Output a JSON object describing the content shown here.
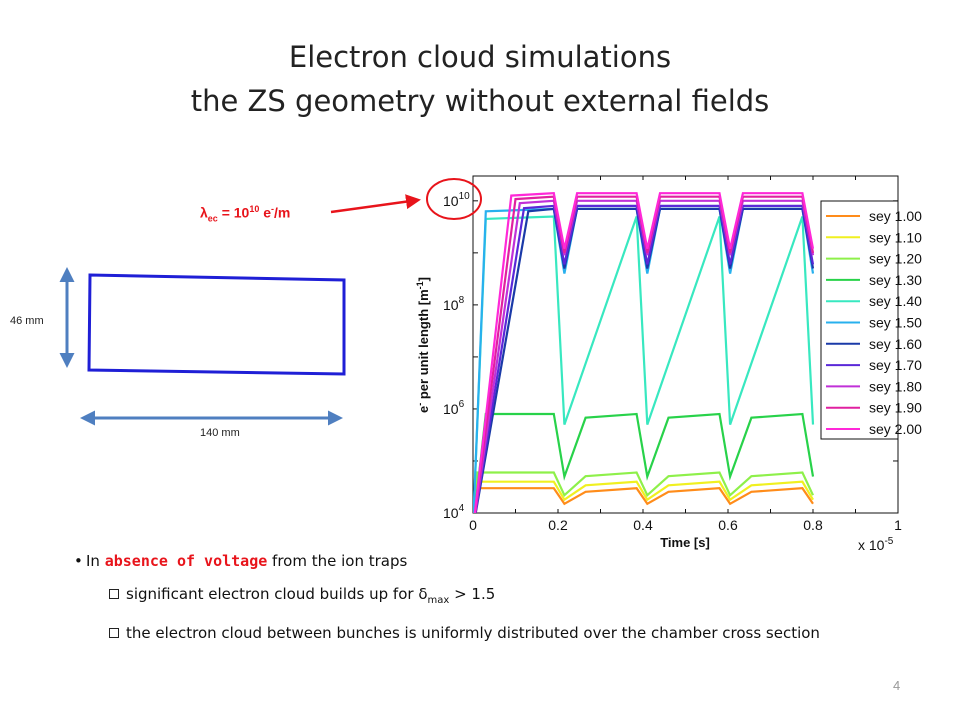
{
  "slide": {
    "title_line1": "Electron cloud simulations",
    "title_line2": "the ZS geometry without external fields",
    "page_number": "4"
  },
  "annotation": {
    "symbol": "λ",
    "subscript": "ec",
    "equals": " = 10",
    "exponent": "10",
    "unit": " e",
    "unit_sup": "-",
    "per": "/m",
    "color": "#e8141b"
  },
  "geometry": {
    "height_label": "46 mm",
    "width_label": "140 mm",
    "box_color": "#1f1fd6",
    "arrow_color": "#4f7fc0"
  },
  "bullets": {
    "main_pre": "In ",
    "main_highlight": "absence of voltage",
    "main_post": " from the ion traps",
    "sub1_pre": "significant electron cloud builds up for ",
    "sub1_symbol": "δ",
    "sub1_subscript": "max",
    "sub1_post": " > 1.5",
    "sub2": "the electron cloud between bunches is uniformly distributed over the chamber cross section"
  },
  "chart_data": {
    "type": "line",
    "xlabel": "Time [s]",
    "x_multiplier": "x 10",
    "x_multiplier_exp": "-5",
    "ylabel_pre": "e",
    "ylabel_sup": "-",
    "ylabel_mid": " per unit length [m",
    "ylabel_exp": "-1",
    "ylabel_post": "]",
    "y_scale": "log",
    "xlim": [
      0,
      1
    ],
    "ylim": [
      10000,
      30000000000
    ],
    "x_ticks": [
      "0",
      "0.2",
      "0.4",
      "0.6",
      "0.8",
      "1"
    ],
    "y_ticks": [
      {
        "base": "10",
        "exp": "4"
      },
      {
        "base": "10",
        "exp": "6"
      },
      {
        "base": "10",
        "exp": "8"
      },
      {
        "base": "10",
        "exp": "10"
      }
    ],
    "legend_position": "right",
    "bunch_gaps": [
      0.195,
      0.39,
      0.585,
      0.78
    ],
    "series": [
      {
        "name": "sey 1.00",
        "color": "#ff8c1a",
        "rise_end": 0.01,
        "plateau": 30000,
        "gap_min": 15000
      },
      {
        "name": "sey 1.10",
        "color": "#f0f020",
        "rise_end": 0.01,
        "plateau": 40000,
        "gap_min": 18000
      },
      {
        "name": "sey 1.20",
        "color": "#8ef04a",
        "rise_end": 0.01,
        "plateau": 60000,
        "gap_min": 22000
      },
      {
        "name": "sey 1.30",
        "color": "#28d24a",
        "rise_end": 0.03,
        "plateau": 800000,
        "gap_min": 50000
      },
      {
        "name": "sey 1.40",
        "color": "#38e8c0",
        "rise_end": 0.03,
        "plateau": 5000000000,
        "gap_min": 500000
      },
      {
        "name": "sey 1.50",
        "color": "#28b0ee",
        "rise_end": 0.03,
        "plateau": 7000000000,
        "gap_min": 400000000
      },
      {
        "name": "sey 1.60",
        "color": "#1a3aa8",
        "rise_end": 0.13,
        "plateau": 7000000000,
        "gap_min": 500000000
      },
      {
        "name": "sey 1.70",
        "color": "#5a28d8",
        "rise_end": 0.12,
        "plateau": 8000000000,
        "gap_min": 600000000
      },
      {
        "name": "sey 1.80",
        "color": "#c030d8",
        "rise_end": 0.11,
        "plateau": 10000000000,
        "gap_min": 900000000
      },
      {
        "name": "sey 1.90",
        "color": "#e020a0",
        "rise_end": 0.1,
        "plateau": 12000000000,
        "gap_min": 1000000000
      },
      {
        "name": "sey 2.00",
        "color": "#ff28d8",
        "rise_end": 0.09,
        "plateau": 14000000000,
        "gap_min": 1200000000
      }
    ]
  }
}
